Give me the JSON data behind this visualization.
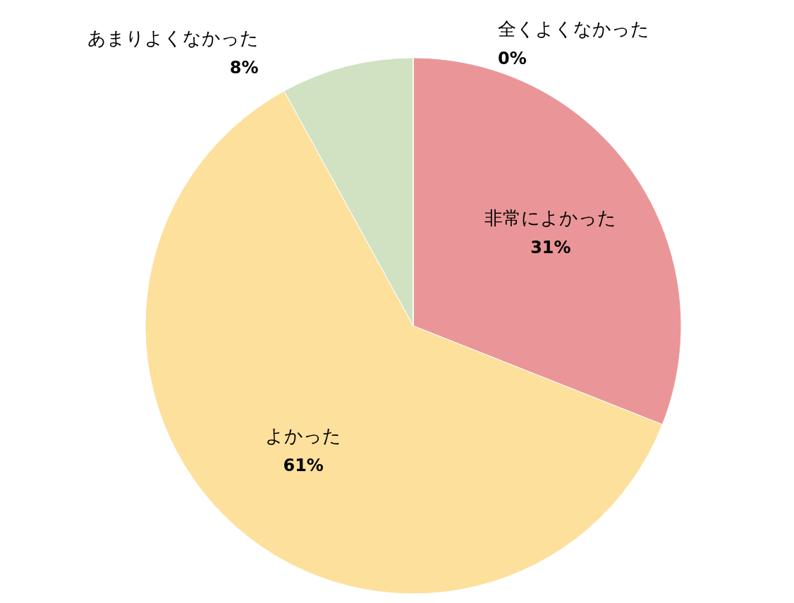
{
  "chart_data": {
    "type": "pie",
    "categories": [
      "非常によかった",
      "よかった",
      "あまりよくなかった",
      "全くよくなかった"
    ],
    "values": [
      31,
      61,
      8,
      0
    ],
    "value_labels": [
      "31%",
      "61%",
      "8%",
      "0%"
    ],
    "colors": [
      "#ea9698",
      "#fde09c",
      "#d1e2c3",
      "#9dc3e6"
    ]
  }
}
